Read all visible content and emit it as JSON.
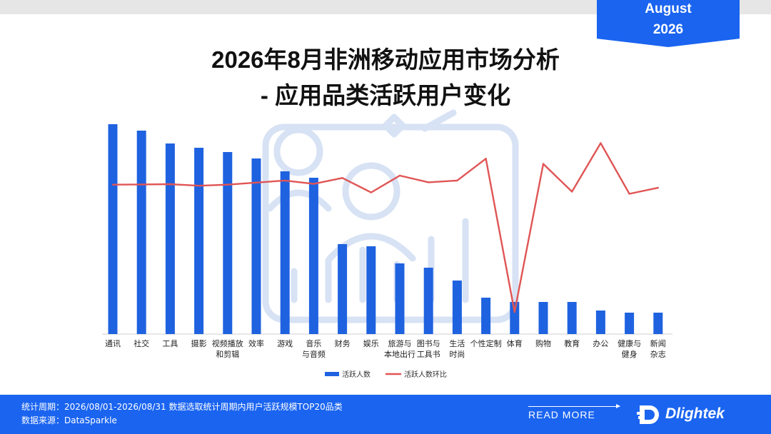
{
  "badge": {
    "month": "August",
    "year": "2026"
  },
  "title": {
    "line1": "2026年8月非洲移动应用市场分析",
    "line2": "- 应用品类活跃用户变化"
  },
  "chart_data": {
    "type": "bar+line",
    "categories": [
      [
        "通讯"
      ],
      [
        "社交"
      ],
      [
        "工具"
      ],
      [
        "摄影"
      ],
      [
        "视频播放",
        "和剪辑"
      ],
      [
        "效率"
      ],
      [
        "游戏"
      ],
      [
        "音乐",
        "与音频"
      ],
      [
        "财务"
      ],
      [
        "娱乐"
      ],
      [
        "旅游与",
        "本地出行"
      ],
      [
        "图书与",
        "工具书"
      ],
      [
        "生活",
        "时尚"
      ],
      [
        "个性定制"
      ],
      [
        "体育"
      ],
      [
        "购物"
      ],
      [
        "教育"
      ],
      [
        "办公"
      ],
      [
        "健康与",
        "健身"
      ],
      [
        "新闻",
        "杂志"
      ]
    ],
    "series": [
      {
        "name": "活跃人数",
        "type": "bar",
        "color": "#1f62e0",
        "values": [
          98,
          95,
          89,
          87,
          85,
          82,
          76,
          73,
          42,
          41,
          33,
          31,
          25,
          17,
          15,
          15,
          15,
          11,
          10,
          10
        ]
      },
      {
        "name": "活跃人数环比",
        "type": "line",
        "color": "#e05555",
        "values": [
          2.0,
          2.1,
          2.2,
          1.6,
          2.0,
          2.8,
          3.6,
          2.3,
          4.6,
          -1.0,
          5.5,
          2.9,
          3.6,
          12.0,
          -47.0,
          10.0,
          -0.7,
          18.0,
          -1.5,
          0.8
        ]
      }
    ],
    "y_bar_range": [
      0,
      100
    ],
    "y_line_range": [
      -50,
      25
    ],
    "legend_position": "bottom-center",
    "grid": false
  },
  "footer": {
    "period_line": "统计周期：2026/08/01-2026/08/31 数据选取统计周期内用户活跃规模TOP20品类",
    "source_line": "数据来源：DataSparkle",
    "read_more": "READ MORE",
    "brand": "Dlightek"
  },
  "colors": {
    "accent": "#1a64f0",
    "bar": "#1f62e0",
    "line": "#e05555",
    "watermark": "#d7e2f4"
  },
  "icons": {
    "watermark": "users-growth-icon",
    "logo": "dlightek-logo-icon"
  }
}
